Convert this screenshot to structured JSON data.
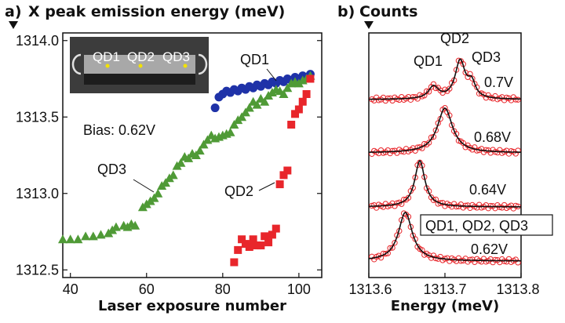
{
  "chart_data": [
    {
      "panel_label": "a)",
      "type": "scatter",
      "title": "X peak emission energy (meV)",
      "xlabel": "Laser exposure number",
      "xlim": [
        38,
        106
      ],
      "ylim": [
        1312.45,
        1314.05
      ],
      "xticks": [
        40,
        60,
        80,
        100
      ],
      "yticks": [
        "1314.0",
        "1313.5",
        "1313.0",
        "1312.5"
      ],
      "annotation_bias": "Bias: 0.62V",
      "inset_labels": [
        "QD1",
        "QD2",
        "QD3"
      ],
      "series": [
        {
          "name": "QD1",
          "color": "#1f32a8",
          "marker": "circle",
          "points": [
            [
              78,
              1313.56
            ],
            [
              79,
              1313.63
            ],
            [
              80,
              1313.65
            ],
            [
              81,
              1313.67
            ],
            [
              82,
              1313.66
            ],
            [
              83,
              1313.68
            ],
            [
              84,
              1313.67
            ],
            [
              85,
              1313.69
            ],
            [
              86,
              1313.68
            ],
            [
              87,
              1313.7
            ],
            [
              88,
              1313.69
            ],
            [
              89,
              1313.71
            ],
            [
              90,
              1313.7
            ],
            [
              91,
              1313.72
            ],
            [
              92,
              1313.71
            ],
            [
              93,
              1313.73
            ],
            [
              94,
              1313.72
            ],
            [
              95,
              1313.74
            ],
            [
              96,
              1313.73
            ],
            [
              97,
              1313.75
            ],
            [
              98,
              1313.74
            ],
            [
              99,
              1313.76
            ],
            [
              100,
              1313.75
            ],
            [
              101,
              1313.77
            ],
            [
              102,
              1313.76
            ],
            [
              103,
              1313.78
            ]
          ]
        },
        {
          "name": "QD3",
          "color": "#4f9a36",
          "marker": "triangle",
          "points": [
            [
              38,
              1312.7
            ],
            [
              40,
              1312.7
            ],
            [
              42,
              1312.7
            ],
            [
              44,
              1312.72
            ],
            [
              46,
              1312.72
            ],
            [
              48,
              1312.73
            ],
            [
              50,
              1312.74
            ],
            [
              51,
              1312.76
            ],
            [
              52,
              1312.78
            ],
            [
              54,
              1312.79
            ],
            [
              55,
              1312.78
            ],
            [
              56,
              1312.8
            ],
            [
              57,
              1312.79
            ],
            [
              59,
              1312.91
            ],
            [
              60,
              1312.93
            ],
            [
              61,
              1312.95
            ],
            [
              62,
              1312.97
            ],
            [
              63,
              1313.0
            ],
            [
              64,
              1313.05
            ],
            [
              65,
              1313.07
            ],
            [
              66,
              1313.1
            ],
            [
              67,
              1313.12
            ],
            [
              68,
              1313.18
            ],
            [
              69,
              1313.2
            ],
            [
              70,
              1313.24
            ],
            [
              71,
              1313.23
            ],
            [
              72,
              1313.26
            ],
            [
              73,
              1313.25
            ],
            [
              74,
              1313.28
            ],
            [
              75,
              1313.32
            ],
            [
              76,
              1313.35
            ],
            [
              77,
              1313.38
            ],
            [
              78,
              1313.36
            ],
            [
              79,
              1313.37
            ],
            [
              80,
              1313.38
            ],
            [
              81,
              1313.39
            ],
            [
              82,
              1313.4
            ],
            [
              83,
              1313.45
            ],
            [
              84,
              1313.48
            ],
            [
              85,
              1313.5
            ],
            [
              86,
              1313.53
            ],
            [
              87,
              1313.56
            ],
            [
              88,
              1313.6
            ],
            [
              89,
              1313.58
            ],
            [
              90,
              1313.62
            ],
            [
              91,
              1313.6
            ],
            [
              92,
              1313.64
            ],
            [
              93,
              1313.66
            ],
            [
              94,
              1313.68
            ],
            [
              95,
              1313.67
            ],
            [
              96,
              1313.65
            ],
            [
              97,
              1313.69
            ],
            [
              98,
              1313.72
            ],
            [
              99,
              1313.73
            ],
            [
              100,
              1313.72
            ],
            [
              101,
              1313.74
            ],
            [
              102,
              1313.75
            ],
            [
              103,
              1313.77
            ]
          ]
        },
        {
          "name": "QD2",
          "color": "#e8262b",
          "marker": "square",
          "points": [
            [
              83,
              1312.55
            ],
            [
              84,
              1312.63
            ],
            [
              85,
              1312.7
            ],
            [
              86,
              1312.67
            ],
            [
              87,
              1312.65
            ],
            [
              88,
              1312.7
            ],
            [
              89,
              1312.66
            ],
            [
              90,
              1312.66
            ],
            [
              91,
              1312.72
            ],
            [
              92,
              1312.68
            ],
            [
              93,
              1312.73
            ],
            [
              94,
              1312.77
            ],
            [
              95,
              1313.06
            ],
            [
              96,
              1313.12
            ],
            [
              97,
              1313.15
            ],
            [
              98,
              1313.45
            ],
            [
              99,
              1313.52
            ],
            [
              100,
              1313.55
            ],
            [
              101,
              1313.6
            ],
            [
              102,
              1313.65
            ],
            [
              103,
              1313.75
            ]
          ]
        }
      ]
    },
    {
      "panel_label": "b)",
      "type": "line",
      "title": "Counts",
      "xlabel": "Energy (meV)",
      "xlim": [
        1313.6,
        1313.8
      ],
      "xticks": [
        "1313.6",
        "1313.7",
        "1313.8"
      ],
      "peak_labels": [
        "QD2",
        "QD1",
        "QD3"
      ],
      "boxed_label": "QD1, QD2, QD3",
      "fit_color": "#111111",
      "data_color": "#e8262b",
      "traces": [
        {
          "label": "0.7V",
          "peaks": [
            {
              "center": 1313.685,
              "height": 0.25,
              "width": 0.008
            },
            {
              "center": 1313.72,
              "height": 0.78,
              "width": 0.008
            },
            {
              "center": 1313.735,
              "height": 0.3,
              "width": 0.006
            }
          ]
        },
        {
          "label": "0.68V",
          "peaks": [
            {
              "center": 1313.7,
              "height": 0.92,
              "width": 0.012
            }
          ]
        },
        {
          "label": "0.64V",
          "peaks": [
            {
              "center": 1313.667,
              "height": 0.95,
              "width": 0.008
            }
          ]
        },
        {
          "label": "0.62V",
          "peaks": [
            {
              "center": 1313.648,
              "height": 1.0,
              "width": 0.011
            }
          ]
        }
      ]
    }
  ]
}
